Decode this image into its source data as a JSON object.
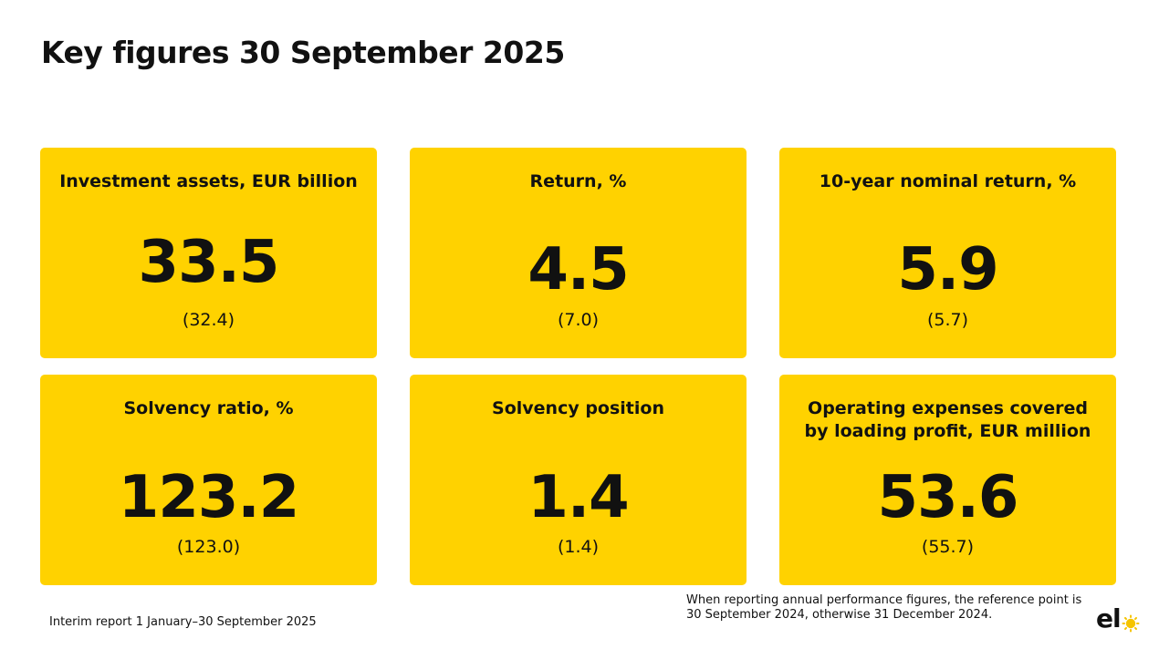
{
  "page": {
    "title": "Key figures 30 September 2025"
  },
  "cards": [
    {
      "label": "Investment assets, EUR billion",
      "value": "33.5",
      "previous": "(32.4)"
    },
    {
      "label": "Return, %",
      "value": "4.5",
      "previous": "(7.0)"
    },
    {
      "label": "10-year nominal return, %",
      "value": "5.9",
      "previous": "(5.7)"
    },
    {
      "label": "Solvency ratio, %",
      "value": "123.2",
      "previous": "(123.0)"
    },
    {
      "label": "Solvency position",
      "value": "1.4",
      "previous": "(1.4)"
    },
    {
      "label": "Operating expenses covered\nby loading profit, EUR million",
      "value": "53.6",
      "previous": "(55.7)"
    }
  ],
  "footer": {
    "report": "Interim report 1 January–30 September 2025",
    "note": "When reporting annual performance figures, the reference point is\n30 September 2024, otherwise 31 December 2024."
  },
  "logo": {
    "text": "el",
    "icon": "sun-icon"
  },
  "colors": {
    "card_background": "#ffd200",
    "text": "#111111",
    "page_background": "#ffffff"
  }
}
